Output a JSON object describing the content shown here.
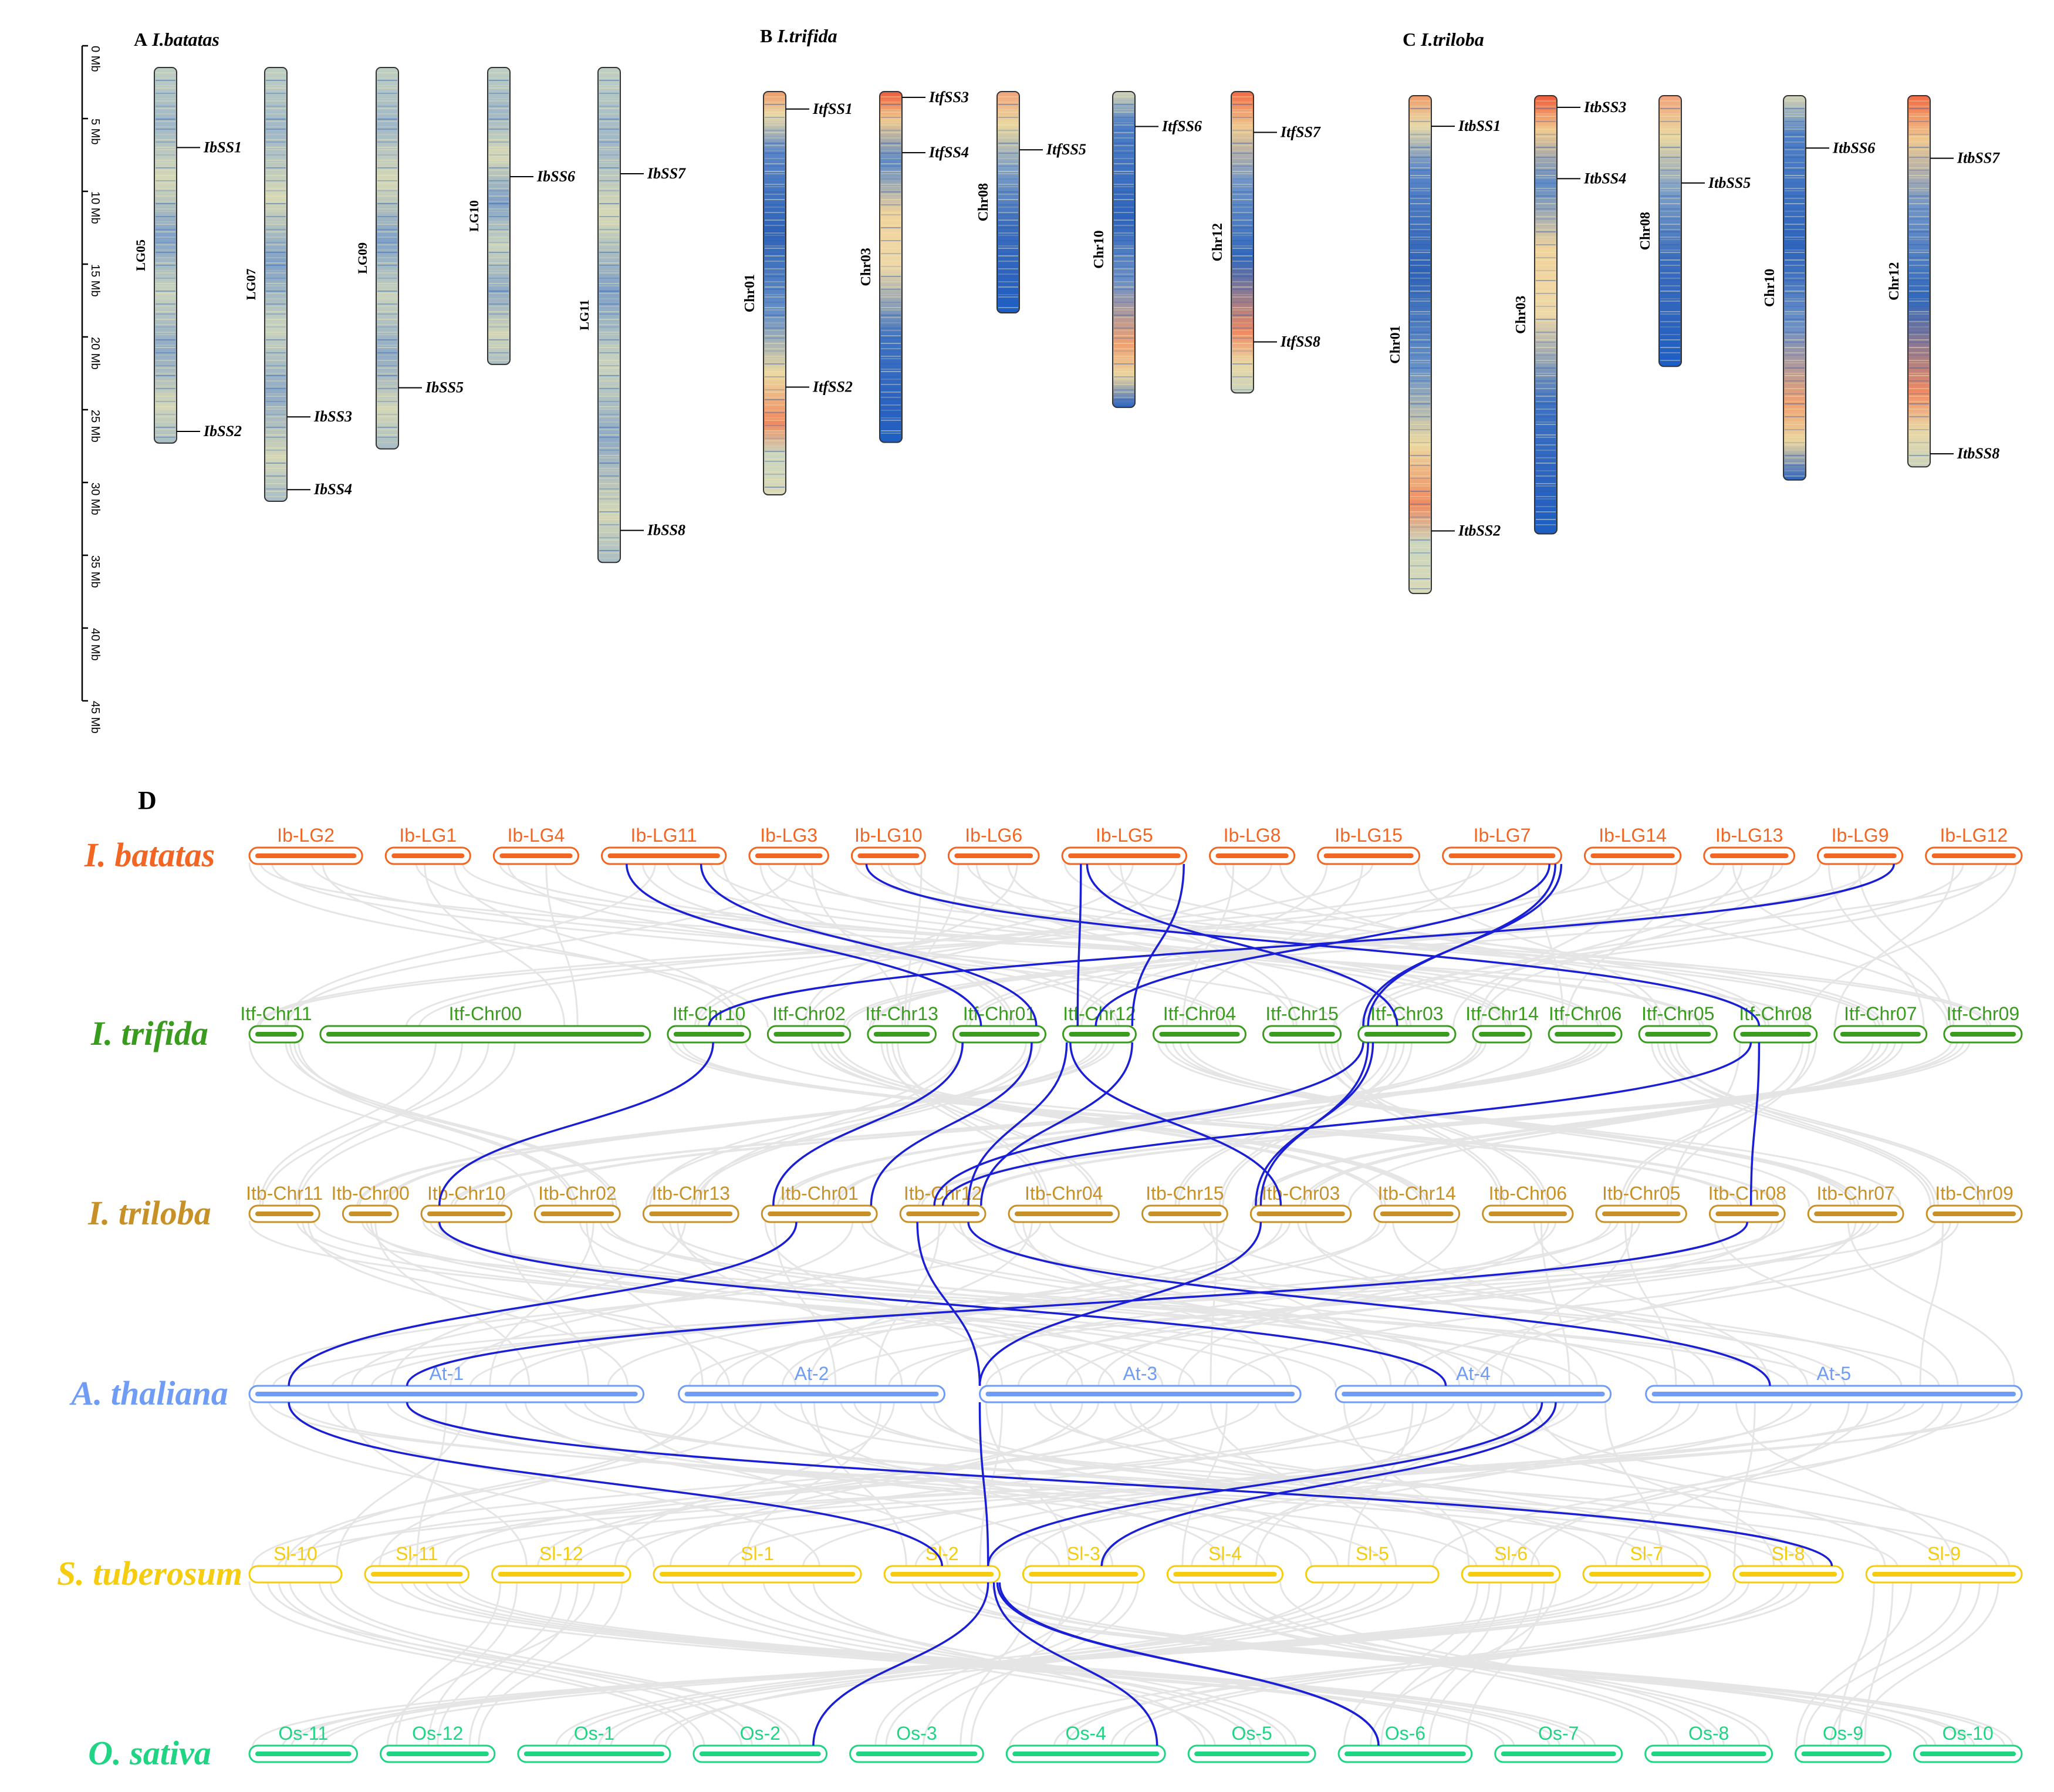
{
  "scale": {
    "ticks": [
      "0 Mb",
      "5 Mb",
      "10 Mb",
      "15 Mb",
      "20 Mb",
      "25 Mb",
      "30 Mb",
      "35 Mb",
      "40 Mb",
      "45 Mb"
    ],
    "max_mb": 45
  },
  "panels": [
    {
      "id": "A",
      "letter": "A",
      "species": "I.batatas",
      "chromosomes": [
        {
          "name": "LG05",
          "length_mb": 25.8,
          "profile": "blue",
          "genes": [
            {
              "name": "IbSS1",
              "pos_mb": 5.5
            },
            {
              "name": "IbSS2",
              "pos_mb": 25.0
            }
          ]
        },
        {
          "name": "LG07",
          "length_mb": 29.8,
          "profile": "blue",
          "genes": [
            {
              "name": "IbSS3",
              "pos_mb": 24.0
            },
            {
              "name": "IbSS4",
              "pos_mb": 29.0
            }
          ]
        },
        {
          "name": "LG09",
          "length_mb": 26.2,
          "profile": "blue",
          "genes": [
            {
              "name": "IbSS5",
              "pos_mb": 22.0
            }
          ]
        },
        {
          "name": "LG10",
          "length_mb": 20.4,
          "profile": "blue",
          "genes": [
            {
              "name": "IbSS6",
              "pos_mb": 7.5
            }
          ]
        },
        {
          "name": "LG11",
          "length_mb": 34.0,
          "profile": "blue",
          "genes": [
            {
              "name": "IbSS7",
              "pos_mb": 7.3
            },
            {
              "name": "IbSS8",
              "pos_mb": 31.8
            }
          ]
        }
      ]
    },
    {
      "id": "B",
      "letter": "B",
      "species": "I.trifida",
      "chromosomes": [
        {
          "name": "Chr01",
          "length_mb": 27.7,
          "profile": "chr01",
          "genes": [
            {
              "name": "ItfSS1",
              "pos_mb": 1.2
            },
            {
              "name": "ItfSS2",
              "pos_mb": 20.3
            }
          ]
        },
        {
          "name": "Chr03",
          "length_mb": 24.1,
          "profile": "chr03",
          "genes": [
            {
              "name": "ItfSS3",
              "pos_mb": 0.4
            },
            {
              "name": "ItfSS4",
              "pos_mb": 4.2
            }
          ]
        },
        {
          "name": "Chr08",
          "length_mb": 15.2,
          "profile": "chr08",
          "genes": [
            {
              "name": "ItfSS5",
              "pos_mb": 4.0
            }
          ]
        },
        {
          "name": "Chr10",
          "length_mb": 21.7,
          "profile": "chr10",
          "genes": [
            {
              "name": "ItfSS6",
              "pos_mb": 2.4
            }
          ]
        },
        {
          "name": "Chr12",
          "length_mb": 20.7,
          "profile": "chr12",
          "genes": [
            {
              "name": "ItfSS7",
              "pos_mb": 2.8
            },
            {
              "name": "ItfSS8",
              "pos_mb": 17.2
            }
          ]
        }
      ]
    },
    {
      "id": "C",
      "letter": "C",
      "species": "I.triloba",
      "chromosomes": [
        {
          "name": "Chr01",
          "length_mb": 34.2,
          "profile": "chr01",
          "genes": [
            {
              "name": "ItbSS1",
              "pos_mb": 2.1
            },
            {
              "name": "ItbSS2",
              "pos_mb": 29.9
            }
          ]
        },
        {
          "name": "Chr03",
          "length_mb": 30.1,
          "profile": "chr03",
          "genes": [
            {
              "name": "ItbSS3",
              "pos_mb": 0.8
            },
            {
              "name": "ItbSS4",
              "pos_mb": 5.7
            }
          ]
        },
        {
          "name": "Chr08",
          "length_mb": 18.6,
          "profile": "chr08",
          "genes": [
            {
              "name": "ItbSS5",
              "pos_mb": 6.0
            }
          ]
        },
        {
          "name": "Chr10",
          "length_mb": 26.4,
          "profile": "chr10",
          "genes": [
            {
              "name": "ItbSS6",
              "pos_mb": 3.6
            }
          ]
        },
        {
          "name": "Chr12",
          "length_mb": 25.5,
          "profile": "chr12",
          "genes": [
            {
              "name": "ItbSS7",
              "pos_mb": 4.3
            },
            {
              "name": "ItbSS8",
              "pos_mb": 24.6
            }
          ]
        }
      ]
    }
  ],
  "synteny": {
    "letter": "D",
    "species": [
      {
        "name": "I. batatas",
        "color": "#f26522",
        "chromosomes": [
          "Ib-LG2",
          "Ib-LG1",
          "Ib-LG4",
          "Ib-LG11",
          "Ib-LG3",
          "Ib-LG10",
          "Ib-LG6",
          "Ib-LG5",
          "Ib-LG8",
          "Ib-LG15",
          "Ib-LG7",
          "Ib-LG14",
          "Ib-LG13",
          "Ib-LG9",
          "Ib-LG12"
        ]
      },
      {
        "name": "I. trifida",
        "color": "#3a9c1f",
        "chromosomes": [
          "Itf-Chr11",
          "Itf-Chr00",
          "Itf-Chr10",
          "Itf-Chr02",
          "Itf-Chr13",
          "Itf-Chr01",
          "Itf-Chr12",
          "Itf-Chr04",
          "Itf-Chr15",
          "Itf-Chr03",
          "Itf-Chr14",
          "Itf-Chr06",
          "Itf-Chr05",
          "Itf-Chr08",
          "Itf-Chr07",
          "Itf-Chr09"
        ]
      },
      {
        "name": "I. triloba",
        "color": "#c89128",
        "chromosomes": [
          "Itb-Chr11",
          "Itb-Chr00",
          "Itb-Chr10",
          "Itb-Chr02",
          "Itb-Chr13",
          "Itb-Chr01",
          "Itb-Chr12",
          "Itb-Chr04",
          "Itb-Chr15",
          "Itb-Chr03",
          "Itb-Chr14",
          "Itb-Chr06",
          "Itb-Chr05",
          "Itb-Chr08",
          "Itb-Chr07",
          "Itb-Chr09"
        ]
      },
      {
        "name": "A. thaliana",
        "color": "#6f9cf5",
        "chromosomes": [
          "At-1",
          "At-2",
          "At-3",
          "At-4",
          "At-5"
        ]
      },
      {
        "name": "S. tuberosum",
        "color": "#f5cd0e",
        "chromosomes": [
          "Sl-10",
          "Sl-11",
          "Sl-12",
          "Sl-1",
          "Sl-2",
          "Sl-3",
          "Sl-4",
          "Sl-5",
          "Sl-6",
          "Sl-7",
          "Sl-8",
          "Sl-9"
        ]
      },
      {
        "name": "O. sativa",
        "color": "#1fd584",
        "chromosomes": [
          "Os-11",
          "Os-12",
          "Os-1",
          "Os-2",
          "Os-3",
          "Os-4",
          "Os-5",
          "Os-6",
          "Os-7",
          "Os-8",
          "Os-9",
          "Os-10"
        ]
      }
    ],
    "links": [
      {
        "from": [
          0,
          "Ib-LG11",
          0.2
        ],
        "to": [
          1,
          "Itf-Chr01",
          0.3
        ]
      },
      {
        "from": [
          0,
          "Ib-LG11",
          0.8
        ],
        "to": [
          1,
          "Itf-Chr01",
          0.9
        ]
      },
      {
        "from": [
          0,
          "Ib-LG10",
          0.2
        ],
        "to": [
          1,
          "Itf-Chr08",
          0.3
        ]
      },
      {
        "from": [
          0,
          "Ib-LG5",
          0.15
        ],
        "to": [
          1,
          "Itf-Chr12",
          0.2
        ]
      },
      {
        "from": [
          0,
          "Ib-LG5",
          0.2
        ],
        "to": [
          1,
          "Itf-Chr03",
          0.4
        ]
      },
      {
        "from": [
          0,
          "Ib-LG5",
          0.98
        ],
        "to": [
          1,
          "Itf-Chr12",
          0.95
        ]
      },
      {
        "from": [
          0,
          "Ib-LG7",
          0.9
        ],
        "to": [
          1,
          "Itf-Chr12",
          0.45
        ]
      },
      {
        "from": [
          0,
          "Ib-LG7",
          0.95
        ],
        "to": [
          1,
          "Itf-Chr03",
          0.1
        ]
      },
      {
        "from": [
          0,
          "Ib-LG7",
          1.0
        ],
        "to": [
          1,
          "Itf-Chr03",
          0.05
        ]
      },
      {
        "from": [
          0,
          "Ib-LG9",
          0.9
        ],
        "to": [
          1,
          "Itf-Chr10",
          0.5
        ]
      },
      {
        "from": [
          1,
          "Itf-Chr10",
          0.55
        ],
        "to": [
          2,
          "Itb-Chr10",
          0.2
        ]
      },
      {
        "from": [
          1,
          "Itf-Chr01",
          0.1
        ],
        "to": [
          2,
          "Itb-Chr01",
          0.1
        ]
      },
      {
        "from": [
          1,
          "Itf-Chr01",
          0.85
        ],
        "to": [
          2,
          "Itb-Chr01",
          0.95
        ]
      },
      {
        "from": [
          1,
          "Itf-Chr12",
          0.05
        ],
        "to": [
          2,
          "Itb-Chr12",
          0.8
        ]
      },
      {
        "from": [
          1,
          "Itf-Chr12",
          0.95
        ],
        "to": [
          2,
          "Itb-Chr12",
          0.95
        ]
      },
      {
        "from": [
          1,
          "Itf-Chr12",
          0.1
        ],
        "to": [
          2,
          "Itb-Chr03",
          0.3
        ]
      },
      {
        "from": [
          1,
          "Itf-Chr03",
          0.05
        ],
        "to": [
          2,
          "Itb-Chr12",
          0.4
        ]
      },
      {
        "from": [
          1,
          "Itf-Chr03",
          0.1
        ],
        "to": [
          2,
          "Itb-Chr03",
          0.1
        ]
      },
      {
        "from": [
          1,
          "Itf-Chr03",
          0.15
        ],
        "to": [
          2,
          "Itb-Chr03",
          0.05
        ]
      },
      {
        "from": [
          1,
          "Itf-Chr08",
          0.2
        ],
        "to": [
          2,
          "Itb-Chr12",
          0.5
        ]
      },
      {
        "from": [
          1,
          "Itf-Chr08",
          0.3
        ],
        "to": [
          2,
          "Itb-Chr08",
          0.55
        ]
      },
      {
        "from": [
          2,
          "Itb-Chr01",
          0.3
        ],
        "to": [
          3,
          "At-1",
          0.1
        ]
      },
      {
        "from": [
          2,
          "Itb-Chr10",
          0.2
        ],
        "to": [
          3,
          "At-4",
          0.4
        ]
      },
      {
        "from": [
          2,
          "Itb-Chr12",
          0.2
        ],
        "to": [
          3,
          "At-3",
          0.0
        ]
      },
      {
        "from": [
          2,
          "Itb-Chr12",
          0.8
        ],
        "to": [
          3,
          "At-5",
          0.33
        ]
      },
      {
        "from": [
          2,
          "Itb-Chr03",
          0.1
        ],
        "to": [
          3,
          "At-3",
          0.0
        ]
      },
      {
        "from": [
          2,
          "Itb-Chr08",
          0.5
        ],
        "to": [
          3,
          "At-1",
          0.4
        ]
      },
      {
        "from": [
          3,
          "At-1",
          0.1
        ],
        "to": [
          4,
          "Sl-2",
          0.5
        ]
      },
      {
        "from": [
          3,
          "At-1",
          0.4
        ],
        "to": [
          4,
          "Sl-8",
          0.9
        ]
      },
      {
        "from": [
          3,
          "At-3",
          0.0
        ],
        "to": [
          4,
          "Sl-2",
          0.9
        ]
      },
      {
        "from": [
          3,
          "At-4",
          0.75
        ],
        "to": [
          4,
          "Sl-2",
          0.9
        ]
      },
      {
        "from": [
          3,
          "At-4",
          0.8
        ],
        "to": [
          4,
          "Sl-3",
          0.65
        ]
      },
      {
        "from": [
          4,
          "Sl-2",
          0.9
        ],
        "to": [
          5,
          "Os-2",
          0.9
        ]
      },
      {
        "from": [
          4,
          "Sl-2",
          0.95
        ],
        "to": [
          5,
          "Os-4",
          0.95
        ]
      },
      {
        "from": [
          4,
          "Sl-2",
          1.0
        ],
        "to": [
          5,
          "Os-6",
          0.3
        ]
      },
      {
        "from": [
          4,
          "Sl-2",
          0.98
        ],
        "to": [
          5,
          "Os-6",
          0.3
        ]
      }
    ]
  }
}
